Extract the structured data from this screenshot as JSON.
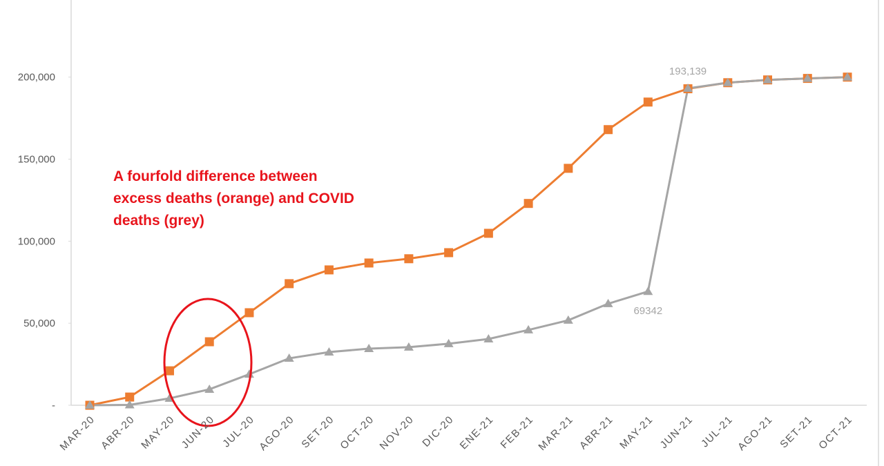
{
  "chart_data": {
    "type": "line",
    "categories": [
      "MAR-20",
      "ABR-20",
      "MAY-20",
      "JUN-20",
      "JUL-20",
      "AGO-20",
      "SET-20",
      "OCT-20",
      "NOV-20",
      "DIC-20",
      "ENE-21",
      "FEB-21",
      "MAR-21",
      "ABR-21",
      "MAY-21",
      "JUN-21",
      "JUL-21",
      "AGO-21",
      "SET-21",
      "OCT-21"
    ],
    "series": [
      {
        "color": "#ed7d31",
        "marker": "square",
        "values": [
          0,
          5000,
          21000,
          38700,
          56400,
          74100,
          82500,
          86700,
          89300,
          93000,
          104800,
          123000,
          144400,
          168000,
          184800,
          192900,
          196600,
          198300,
          199200,
          200000
        ]
      },
      {
        "color": "#a5a5a5",
        "marker": "triangle",
        "values": [
          0,
          200,
          4200,
          9700,
          18900,
          28600,
          32400,
          34500,
          35400,
          37500,
          40400,
          45900,
          51800,
          61900,
          69342,
          193139,
          196600,
          198300,
          199200,
          200000
        ],
        "value_labels": [
          null,
          null,
          null,
          null,
          null,
          null,
          null,
          null,
          null,
          null,
          null,
          null,
          null,
          null,
          "69342",
          "193,139",
          null,
          null,
          null,
          null
        ]
      }
    ],
    "ylim": [
      0,
      247000
    ],
    "yticks": [
      {
        "value": 0,
        "label": "-"
      },
      {
        "value": 50000,
        "label": "50,000"
      },
      {
        "value": 100000,
        "label": "100,000"
      },
      {
        "value": 150000,
        "label": "150,000"
      },
      {
        "value": 200000,
        "label": "200,000"
      }
    ],
    "annotation": [
      "A fourfold difference between",
      "excess deaths (orange) and COVID",
      "deaths (grey)"
    ],
    "annotation_color": "#e8141c",
    "grid": false
  }
}
